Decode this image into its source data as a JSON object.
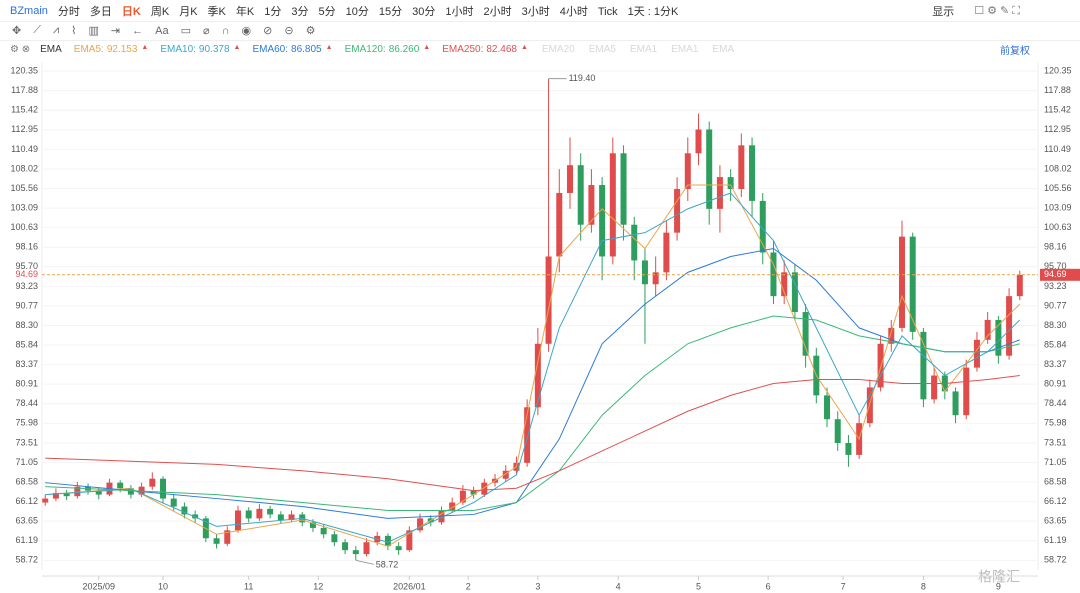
{
  "toolbar": {
    "symbol": "BZmain",
    "items": [
      "分时",
      "多日",
      "日K",
      "周K",
      "月K",
      "季K",
      "年K",
      "1分",
      "3分",
      "5分",
      "10分",
      "15分",
      "30分",
      "1小时",
      "2小时",
      "3小时",
      "4小时",
      "Tick",
      "1天 : 1分K"
    ],
    "active": 2,
    "display": "显示"
  },
  "drawing_tools": {
    "text_tool": "Aa"
  },
  "indicator": {
    "name": "EMA",
    "adjust": "前复权"
  },
  "watermark": "格隆汇",
  "chart_data": {
    "type": "candlestick",
    "symbol": "BZmain",
    "up_color": "#e04b4b",
    "down_color": "#2e9e5e",
    "ylim": [
      57.5,
      121.5
    ],
    "yticks": [
      120.35,
      117.88,
      115.42,
      112.95,
      110.49,
      108.02,
      105.56,
      103.09,
      100.63,
      98.16,
      {
        "value": 95.7,
        "label": "95.70"
      },
      93.23,
      90.77,
      {
        "value": 88.3,
        "label": "88.30"
      },
      85.84,
      83.37,
      80.91,
      78.44,
      75.98,
      73.51,
      71.05,
      68.58,
      66.12,
      63.65,
      61.19,
      58.72
    ],
    "xlim": [
      -0.3,
      92.7
    ],
    "xticks": [
      {
        "value": 5,
        "label": "2025/09"
      },
      {
        "value": 11,
        "label": "10"
      },
      {
        "value": 19,
        "label": "11"
      },
      {
        "value": 25.5,
        "label": "12"
      },
      {
        "value": 34,
        "label": "2026/01"
      },
      {
        "value": 39.5,
        "label": "2"
      },
      {
        "value": 46,
        "label": "3"
      },
      {
        "value": 53.5,
        "label": "4"
      },
      {
        "value": 61,
        "label": "5"
      },
      {
        "value": 67.5,
        "label": "6"
      },
      {
        "value": 74.5,
        "label": "7"
      },
      {
        "value": 82,
        "label": "8"
      },
      {
        "value": 89,
        "label": "9"
      }
    ],
    "last_price": 94.69,
    "last_price_color": "#e8a54a",
    "ohlc": [
      [
        66,
        67,
        65.6,
        66.5
      ],
      [
        66.5,
        67.8,
        66.2,
        67.2
      ],
      [
        67.2,
        67.6,
        66.3,
        66.8
      ],
      [
        66.8,
        68.6,
        66.5,
        68
      ],
      [
        68,
        68.4,
        67,
        67.5
      ],
      [
        67.5,
        67.9,
        66.4,
        67
      ],
      [
        67,
        69,
        66.8,
        68.5
      ],
      [
        68.5,
        68.8,
        67.3,
        67.8
      ],
      [
        67.8,
        68.2,
        66.5,
        67
      ],
      [
        67,
        68.5,
        66.7,
        68
      ],
      [
        68,
        69.8,
        67.6,
        69
      ],
      [
        69,
        69.3,
        66,
        66.5
      ],
      [
        66.5,
        67,
        65,
        65.5
      ],
      [
        65.5,
        66,
        64,
        64.5
      ],
      [
        64.5,
        65,
        63.4,
        64
      ],
      [
        64,
        64.3,
        61,
        61.5
      ],
      [
        61.5,
        62,
        60.2,
        60.8
      ],
      [
        60.8,
        63,
        60.5,
        62.5
      ],
      [
        62.5,
        65.6,
        62.2,
        65
      ],
      [
        65,
        65.4,
        63.5,
        64
      ],
      [
        64,
        65.8,
        63.7,
        65.2
      ],
      [
        65.2,
        65.6,
        64,
        64.5
      ],
      [
        64.5,
        64.9,
        63.3,
        63.8
      ],
      [
        63.8,
        65,
        63.5,
        64.5
      ],
      [
        64.5,
        64.8,
        63,
        63.5
      ],
      [
        63.5,
        63.9,
        62.3,
        62.8
      ],
      [
        62.8,
        63.2,
        61.5,
        62
      ],
      [
        62,
        62.4,
        60.5,
        61
      ],
      [
        61,
        61.4,
        59.5,
        60
      ],
      [
        60,
        60.5,
        58.72,
        59.5
      ],
      [
        59.5,
        61.5,
        59.2,
        61
      ],
      [
        61,
        62.3,
        60.6,
        61.8
      ],
      [
        61.8,
        62.1,
        60,
        60.5
      ],
      [
        60.5,
        61,
        59.4,
        60
      ],
      [
        60,
        63,
        59.8,
        62.5
      ],
      [
        62.5,
        64.6,
        62.2,
        64
      ],
      [
        64,
        64.4,
        63,
        63.5
      ],
      [
        63.5,
        65.5,
        63.2,
        65
      ],
      [
        65,
        66.6,
        64.7,
        66
      ],
      [
        66,
        68.2,
        65.7,
        67.5
      ],
      [
        67.5,
        68,
        66.5,
        67
      ],
      [
        67,
        69,
        66.7,
        68.5
      ],
      [
        68.5,
        69.6,
        68,
        69
      ],
      [
        69,
        70.7,
        68.6,
        70
      ],
      [
        70,
        71.8,
        69.5,
        71
      ],
      [
        71,
        79,
        70.5,
        78
      ],
      [
        78,
        88,
        77,
        86
      ],
      [
        86,
        119.4,
        85,
        97
      ],
      [
        97,
        108,
        95,
        105
      ],
      [
        105,
        112,
        103,
        108.5
      ],
      [
        108.5,
        110,
        99,
        101
      ],
      [
        101,
        108,
        100,
        106
      ],
      [
        106,
        107,
        94,
        97
      ],
      [
        97,
        112,
        96,
        110
      ],
      [
        110,
        111,
        99,
        101
      ],
      [
        101,
        102,
        94,
        96.5
      ],
      [
        96.5,
        98,
        86,
        93.5
      ],
      [
        93.5,
        97,
        92,
        95
      ],
      [
        95,
        101.5,
        94,
        100
      ],
      [
        100,
        107,
        99,
        105.5
      ],
      [
        105.5,
        112,
        104,
        110
      ],
      [
        110,
        115,
        108.5,
        113
      ],
      [
        113,
        114,
        101,
        103
      ],
      [
        103,
        108.5,
        100,
        107
      ],
      [
        107,
        108,
        104,
        105.5
      ],
      [
        105.5,
        112.5,
        104.5,
        111
      ],
      [
        111,
        112,
        102,
        104
      ],
      [
        104,
        105,
        96,
        97.5
      ],
      [
        97.5,
        99,
        91,
        92
      ],
      [
        92,
        96.5,
        91,
        95
      ],
      [
        95,
        96,
        89,
        90
      ],
      [
        90,
        91,
        83,
        84.5
      ],
      [
        84.5,
        85.5,
        78.5,
        79.5
      ],
      [
        79.5,
        80.5,
        75.5,
        76.5
      ],
      [
        76.5,
        77.5,
        72.5,
        73.5
      ],
      [
        73.5,
        74.5,
        70.5,
        72
      ],
      [
        72,
        77,
        71.5,
        76
      ],
      [
        76,
        81.5,
        75.5,
        80.5
      ],
      [
        80.5,
        87,
        80,
        86
      ],
      [
        86,
        89,
        85,
        88
      ],
      [
        88,
        101.5,
        87.5,
        99.5
      ],
      [
        99.5,
        100,
        86.5,
        87.5
      ],
      [
        87.5,
        88,
        78,
        79
      ],
      [
        79,
        83,
        78.5,
        82
      ],
      [
        82,
        82.5,
        79,
        80
      ],
      [
        80,
        80.5,
        76,
        77
      ],
      [
        77,
        84,
        76.5,
        83
      ],
      [
        83,
        87.5,
        82.5,
        86.5
      ],
      [
        86.5,
        90,
        86,
        89
      ],
      [
        89,
        89.5,
        83.5,
        84.5
      ],
      [
        84.5,
        93,
        84,
        92
      ],
      [
        92,
        95.2,
        91.5,
        94.69
      ]
    ],
    "ema_x": [
      0,
      8,
      16,
      24,
      32,
      40,
      44,
      48,
      52,
      56,
      60,
      64,
      68,
      72,
      76,
      80,
      84,
      88,
      91
    ],
    "series": [
      {
        "name": "EMA5:",
        "last": 92.153,
        "color": "#e8a54a",
        "values": [
          67,
          67.8,
          62,
          63.8,
          60.5,
          67,
          70.5,
          97,
          103,
          98,
          106,
          106,
          96,
          82,
          74,
          92,
          80,
          87,
          91
        ]
      },
      {
        "name": "EMA10:",
        "last": 90.378,
        "color": "#3aa8c8",
        "values": [
          67,
          67.7,
          63,
          64,
          61,
          66,
          69.5,
          88,
          99,
          100,
          103,
          105,
          99,
          88,
          77,
          87,
          82,
          85,
          89
        ]
      },
      {
        "name": "EMA60:",
        "last": 86.805,
        "color": "#2b7bd8",
        "values": [
          68.5,
          67.5,
          66.5,
          65.5,
          64,
          64.5,
          66,
          74,
          86,
          91,
          95,
          97,
          98,
          94,
          88,
          86,
          85,
          85,
          86.5
        ]
      },
      {
        "name": "EMA120:",
        "last": 86.26,
        "last_label": "86.260",
        "color": "#3cb878",
        "values": [
          68,
          67.5,
          67,
          66,
          65,
          65,
          66,
          70,
          77,
          82,
          86,
          88,
          89.5,
          89,
          87,
          86,
          85,
          85,
          86
        ]
      },
      {
        "name": "EMA250:",
        "last": 82.468,
        "color": "#e05050",
        "values": [
          71.6,
          71.2,
          70.8,
          70,
          69,
          67.5,
          67.8,
          70,
          72.5,
          75,
          77.5,
          79.5,
          81,
          81.5,
          81.5,
          81,
          81,
          81.5,
          82
        ]
      }
    ],
    "inactive_legend": [
      "EMA20",
      "EMA5",
      "EMA1",
      "EMA1",
      "EMA"
    ],
    "annotations": [
      {
        "x": 47,
        "y": 119.4,
        "label": "119.40"
      },
      {
        "x": 29,
        "y": 58.72,
        "label": "58.72"
      }
    ]
  }
}
